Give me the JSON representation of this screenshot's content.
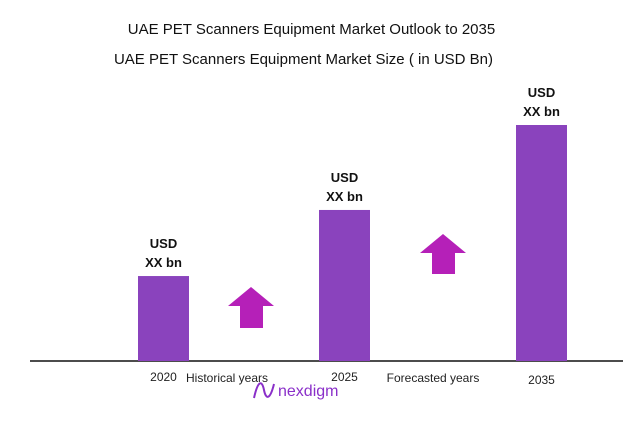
{
  "chart_data": {
    "type": "bar",
    "title": "UAE PET Scanners Equipment Market Outlook to 2035",
    "subtitle": "UAE PET Scanners Equipment Market Size  ( in USD Bn)",
    "categories": [
      "2020",
      "2025",
      "2035"
    ],
    "relative_values": [
      0.36,
      0.64,
      1.0
    ],
    "data_labels": [
      [
        "USD",
        "XX bn"
      ],
      [
        "USD",
        "XX bn"
      ],
      [
        "USD",
        "XX bn"
      ]
    ],
    "annotations": [
      "Historical years",
      "Forecasted years"
    ],
    "grid": false,
    "legend": "none",
    "colors": {
      "bar": "#8a43bd",
      "arrow": "#b520b8",
      "logo": "#8a2fc9"
    }
  },
  "logo": {
    "text": "nexdigm"
  }
}
